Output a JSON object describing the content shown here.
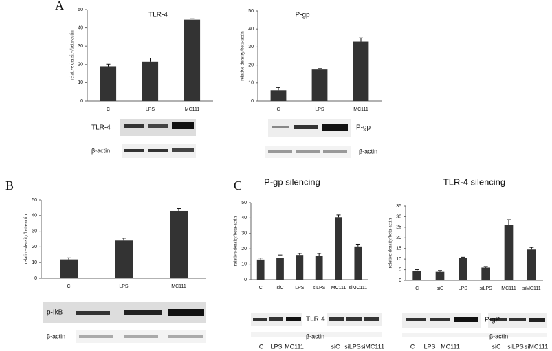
{
  "panels": [
    "A",
    "B",
    "C"
  ],
  "chart_data": [
    {
      "type": "bar",
      "title": "TLR-4",
      "ylabel": "relative density/beta-actin",
      "categories": [
        "C",
        "LPS",
        "MC111"
      ],
      "values": [
        19,
        21.5,
        44.5
      ],
      "errors": [
        1.2,
        2,
        0.5
      ],
      "color": "#333333",
      "ylim": [
        0,
        50
      ],
      "yticks": [
        0,
        10,
        20,
        30,
        40,
        50
      ]
    },
    {
      "type": "bar",
      "title": "P-gp",
      "ylabel": "relative density/beta-actin",
      "categories": [
        "C",
        "LPS",
        "MC111"
      ],
      "values": [
        6,
        17.5,
        33
      ],
      "errors": [
        1.5,
        0.5,
        2
      ],
      "color": "#333333",
      "ylim": [
        0,
        50
      ],
      "yticks": [
        0,
        10,
        20,
        30,
        40,
        50
      ]
    },
    {
      "type": "bar",
      "ylabel": "relative density/beta-actin",
      "categories": [
        "C",
        "LPS",
        "MC111"
      ],
      "values": [
        12,
        24,
        43
      ],
      "errors": [
        1,
        1.5,
        1.5
      ],
      "color": "#333333",
      "ylim": [
        0,
        50
      ],
      "yticks": [
        0,
        10,
        20,
        30,
        40,
        50
      ]
    },
    {
      "type": "bar",
      "title": "P-gp silencing",
      "ylabel": "relative density/beta-actin",
      "categories": [
        "C",
        "siC",
        "LPS",
        "siLPS",
        "MC111",
        "siMC111"
      ],
      "values": [
        13,
        14,
        16,
        15.5,
        40.5,
        21.5
      ],
      "errors": [
        1,
        2,
        1,
        1.5,
        1.5,
        1.5
      ],
      "color": "#333333",
      "ylim": [
        0,
        50
      ],
      "yticks": [
        0,
        10,
        20,
        30,
        40,
        50
      ]
    },
    {
      "type": "bar",
      "title": "TLR-4 silencing",
      "ylabel": "relative density/beta-actin",
      "categories": [
        "C",
        "siC",
        "LPS",
        "siLPS",
        "MC111",
        "siMC111"
      ],
      "values": [
        4.5,
        4,
        10.5,
        6,
        26,
        14.5
      ],
      "errors": [
        0.5,
        0.6,
        0.4,
        0.5,
        2.5,
        1
      ],
      "color": "#333333",
      "ylim": [
        0,
        35
      ],
      "yticks": [
        0,
        5,
        10,
        15,
        20,
        25,
        30,
        35
      ]
    }
  ],
  "blots": [
    {
      "labels": [
        "TLR-4",
        "β-actin"
      ]
    },
    {
      "labels": [
        "P-gp",
        "β-actin"
      ]
    },
    {
      "labels": [
        "p-IkB",
        "β-actin"
      ]
    },
    {
      "labels": [
        "TLR-4",
        "β-actin"
      ],
      "lanes": [
        "C",
        "LPS",
        "MC111",
        "siC",
        "siLPS",
        "siMC111"
      ]
    },
    {
      "labels": [
        "P-gP",
        "β-actin"
      ],
      "lanes": [
        "C",
        "LPS",
        "MC111",
        "siC",
        "siLPS",
        "siMC111"
      ]
    }
  ]
}
